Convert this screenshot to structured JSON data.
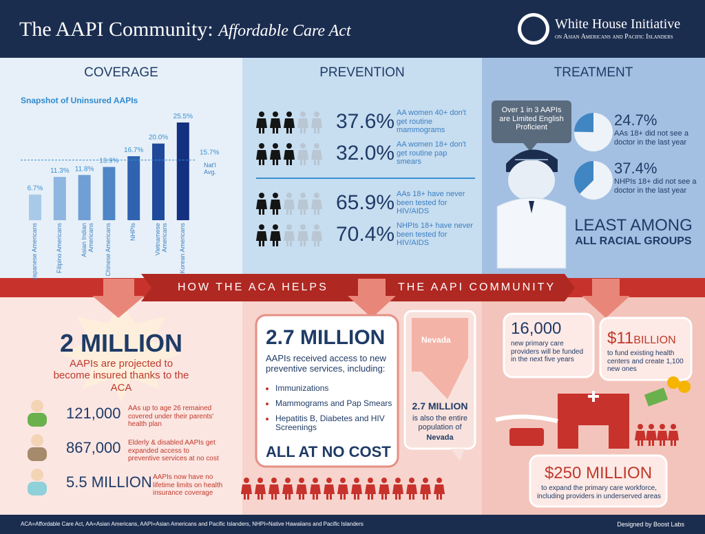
{
  "header": {
    "title": "The AAPI Community:",
    "subtitle": "Affordable Care Act",
    "org": "White House Initiative",
    "org_sub": "on Asian Americans and Pacific Islanders"
  },
  "coverage": {
    "heading": "COVERAGE"
  },
  "chart_data": {
    "type": "bar",
    "title": "Snapshot of Uninsured AAPIs",
    "categories": [
      "Japanese Americans",
      "Filipino Americans",
      "Asian Indian Americans",
      "Chinese Americans",
      "NHPIs",
      "Vietnamese Americans",
      "Korean Americans"
    ],
    "values": [
      6.7,
      11.3,
      11.8,
      13.9,
      16.7,
      20.0,
      25.5
    ],
    "value_labels": [
      "6.7%",
      "11.3%",
      "11.8%",
      "13.9%",
      "16.7%",
      "20.0%",
      "25.5%"
    ],
    "colors": [
      "#a9c9e8",
      "#8fb6e0",
      "#6f9fd4",
      "#4f86c6",
      "#2f63b0",
      "#1f4a9c",
      "#143080"
    ],
    "reference": {
      "value": 15.7,
      "label": "15.7%",
      "text": "Nat'l Avg."
    }
  },
  "prevention": {
    "heading": "PREVENTION",
    "items": [
      {
        "value": "37.6%",
        "text": "AA women 40+ don't get routine mammograms"
      },
      {
        "value": "32.0%",
        "text": "AA women 18+ don't get routine pap smears"
      },
      {
        "value": "65.9%",
        "text": "AAs 18+ have never been tested for HIV/AIDS"
      },
      {
        "value": "70.4%",
        "text": "NHPIs 18+ have never been tested for HIV/AIDS"
      }
    ]
  },
  "treatment": {
    "heading": "TREATMENT",
    "bubble": "Over 1 in 3 AAPIs are Limited English Proficient",
    "stats": [
      {
        "value": 24.7,
        "label": "24.7%",
        "text": "AAs 18+ did not see a doctor in the last year"
      },
      {
        "value": 37.4,
        "label": "37.4%",
        "text": "NHPIs 18+ did not see a doctor in the last year"
      }
    ],
    "least": "LEAST AMONG",
    "groups": "ALL RACIAL GROUPS"
  },
  "banner": {
    "left": "HOW THE ACA HELPS",
    "right": "THE AAPI COMMUNITY"
  },
  "insured": {
    "headline": "2 MILLION",
    "text": "AAPIs are projected to become insured thanks to the ACA",
    "items": [
      {
        "value": "121,000",
        "text": "AAs up to age 26 remained covered under their parents' health plan"
      },
      {
        "value": "867,000",
        "text": "Elderly & disabled AAPIs get expanded access to preventive services at no cost"
      },
      {
        "value": "5.5 MILLION",
        "text": "AAPIs now have no lifetime limits on health insurance coverage"
      }
    ]
  },
  "services": {
    "headline": "2.7 MILLION",
    "text": "AAPIs received access to new preventive services, including:",
    "list": [
      "Immunizations",
      "Mammograms and Pap Smears",
      "Hepatitis B, Diabetes and HIV Screenings"
    ],
    "closing": "ALL AT NO COST"
  },
  "nevada": {
    "state": "Nevada",
    "value": "2.7 MILLION",
    "text": "is also the entire population of",
    "name": "Nevada"
  },
  "funding": {
    "providers": {
      "value": "16,000",
      "text": "new primary care providers will be funded in the next five years"
    },
    "centers": {
      "value": "$11",
      "unit": "BILLION",
      "text": "to fund existing health centers and create 1,100 new ones"
    },
    "workforce": {
      "value": "$250 MILLION",
      "text": "to expand the primary care workforce, including providers in underserved areas"
    }
  },
  "footer": {
    "note": "ACA=Affordable Care Act, AA=Asian Americans, AAPI=Asian Americans and Pacific Islanders, NHPI=Native Hawaiians and Pacific Islanders",
    "credit": "Designed by Boost Labs"
  }
}
